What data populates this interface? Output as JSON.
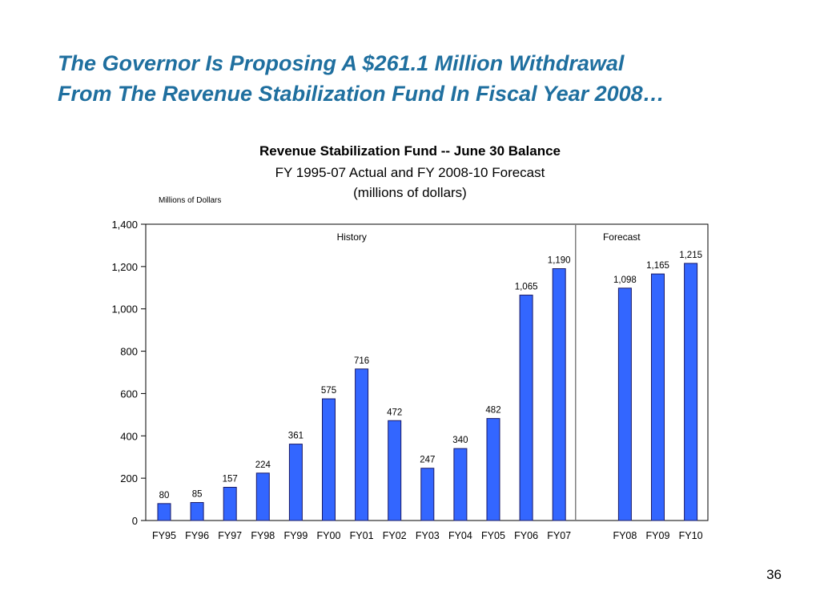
{
  "slide": {
    "title_line1": "The Governor Is Proposing A $261.1 Million Withdrawal",
    "title_line2": "From The Revenue Stabilization Fund In Fiscal Year 2008…",
    "page_number": "36"
  },
  "colors": {
    "title": "#1f6f9f",
    "bar_fill": "#3366ff",
    "bar_stroke": "#1a1a66",
    "divider": "#7f7f7f"
  },
  "chart_data": {
    "type": "bar",
    "title": "Revenue Stabilization Fund -- June 30 Balance",
    "subtitle": "FY 1995-07 Actual and FY 2008-10 Forecast",
    "subtitle2": "(millions of dollars)",
    "ylabel": "Millions of Dollars",
    "ylim": [
      0,
      1400
    ],
    "yticks": [
      0,
      200,
      400,
      600,
      800,
      1000,
      1200,
      1400
    ],
    "ytick_labels": [
      "0",
      "200",
      "400",
      "600",
      "800",
      "1,000",
      "1,200",
      "1,400"
    ],
    "grid": false,
    "legend": "none",
    "groups": [
      {
        "label": "History",
        "categories": [
          "FY95",
          "FY96",
          "FY97",
          "FY98",
          "FY99",
          "FY00",
          "FY01",
          "FY02",
          "FY03",
          "FY04",
          "FY05",
          "FY06",
          "FY07"
        ],
        "values": [
          80,
          85,
          157,
          224,
          361,
          575,
          716,
          472,
          247,
          340,
          482,
          1065,
          1190
        ],
        "value_labels": [
          "80",
          "85",
          "157",
          "224",
          "361",
          "575",
          "716",
          "472",
          "247",
          "340",
          "482",
          "1,065",
          "1,190"
        ]
      },
      {
        "label": "Forecast",
        "categories": [
          "FY08",
          "FY09",
          "FY10"
        ],
        "values": [
          1098,
          1165,
          1215
        ],
        "value_labels": [
          "1,098",
          "1,165",
          "1,215"
        ]
      }
    ]
  }
}
